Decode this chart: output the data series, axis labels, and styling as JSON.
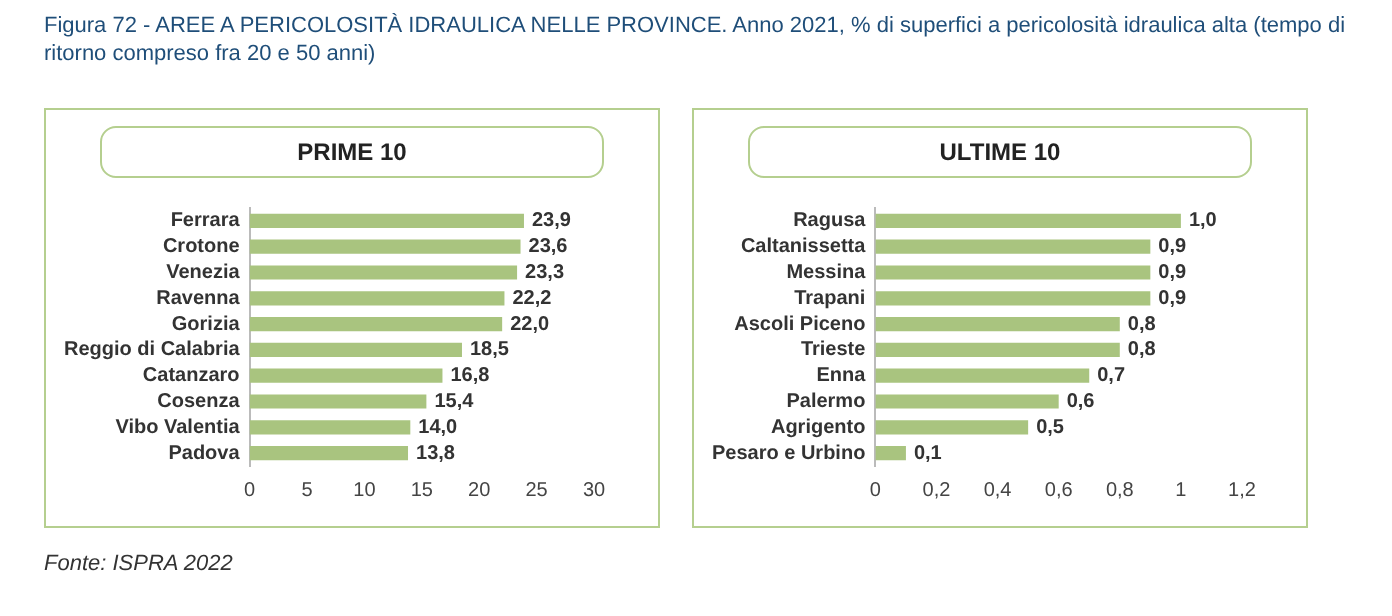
{
  "chart_data": [
    {
      "type": "bar",
      "orientation": "horizontal",
      "title": "PRIME 10",
      "annotations": [
        "Figura 72 - AREE A PERICOLOSITÀ IDRAULICA NELLE PROVINCE. Anno 2021, % di superfici a pericolosità idraulica alta (tempo di ritorno compreso fra 20 e 50 anni)",
        "Fonte: ISPRA 2022"
      ],
      "categories": [
        "Ferrara",
        "Crotone",
        "Venezia",
        "Ravenna",
        "Gorizia",
        "Reggio di Calabria",
        "Catanzaro",
        "Cosenza",
        "Vibo Valentia",
        "Padova"
      ],
      "values": [
        23.9,
        23.6,
        23.3,
        22.2,
        22.0,
        18.5,
        16.8,
        15.4,
        14.0,
        13.8
      ],
      "value_labels": [
        "23,9",
        "23,6",
        "23,3",
        "22,2",
        "22,0",
        "18,5",
        "16,8",
        "15,4",
        "14,0",
        "13,8"
      ],
      "color": "#a9c47f",
      "xlim": [
        0,
        30
      ],
      "xticks": [
        0,
        5,
        10,
        15,
        20,
        25,
        30
      ],
      "grid": false,
      "legend": false
    },
    {
      "type": "bar",
      "orientation": "horizontal",
      "title": "ULTIME 10",
      "categories": [
        "Ragusa",
        "Caltanissetta",
        "Messina",
        "Trapani",
        "Ascoli Piceno",
        "Trieste",
        "Enna",
        "Palermo",
        "Agrigento",
        "Pesaro e Urbino"
      ],
      "values": [
        1.0,
        0.9,
        0.9,
        0.9,
        0.8,
        0.8,
        0.7,
        0.6,
        0.5,
        0.1
      ],
      "value_labels": [
        "1,0",
        "0,9",
        "0,9",
        "0,9",
        "0,8",
        "0,8",
        "0,7",
        "0,6",
        "0,5",
        "0,1"
      ],
      "color": "#a9c47f",
      "xlim": [
        0,
        1.2
      ],
      "xticks": [
        0,
        {
          "value": 0.2,
          "label": "0,2"
        },
        {
          "value": 0.4,
          "label": "0,4"
        },
        {
          "value": 0.6,
          "label": "0,6"
        },
        {
          "value": 0.8,
          "label": "0,8"
        },
        1,
        {
          "value": 1.2,
          "label": "1,2"
        }
      ],
      "grid": false,
      "legend": false
    }
  ]
}
